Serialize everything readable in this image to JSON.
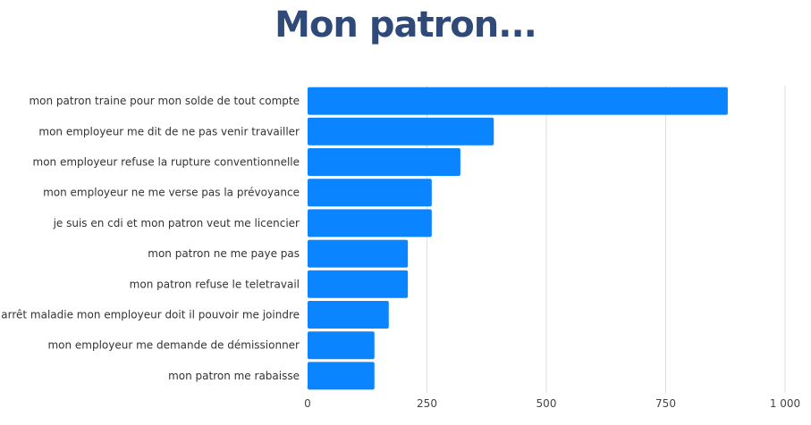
{
  "chart_data": {
    "type": "bar",
    "orientation": "horizontal",
    "title": "Mon patron...",
    "xlabel": "",
    "ylabel": "",
    "categories": [
      "mon patron traine pour mon solde de tout compte",
      "mon employeur me dit de ne pas venir travailler",
      "mon employeur refuse la rupture conventionnelle",
      "mon employeur ne me verse pas la prévoyance",
      "je suis en cdi et mon patron veut me licencier",
      "mon patron ne me paye pas",
      "mon patron refuse le teletravail",
      "en arrêt maladie mon employeur doit il pouvoir me joindre",
      "mon employeur me demande de démissionner",
      "mon patron me rabaisse"
    ],
    "values": [
      880,
      390,
      320,
      260,
      260,
      210,
      210,
      170,
      140,
      140
    ],
    "xlim": [
      0,
      1000
    ],
    "xticks": [
      0,
      250,
      500,
      750,
      1000
    ],
    "xtick_labels": [
      "0",
      "250",
      "500",
      "750",
      "1 000"
    ],
    "grid": true,
    "legend": "none",
    "bar_color": "#0a84ff",
    "title_color": "#2f4a78"
  }
}
